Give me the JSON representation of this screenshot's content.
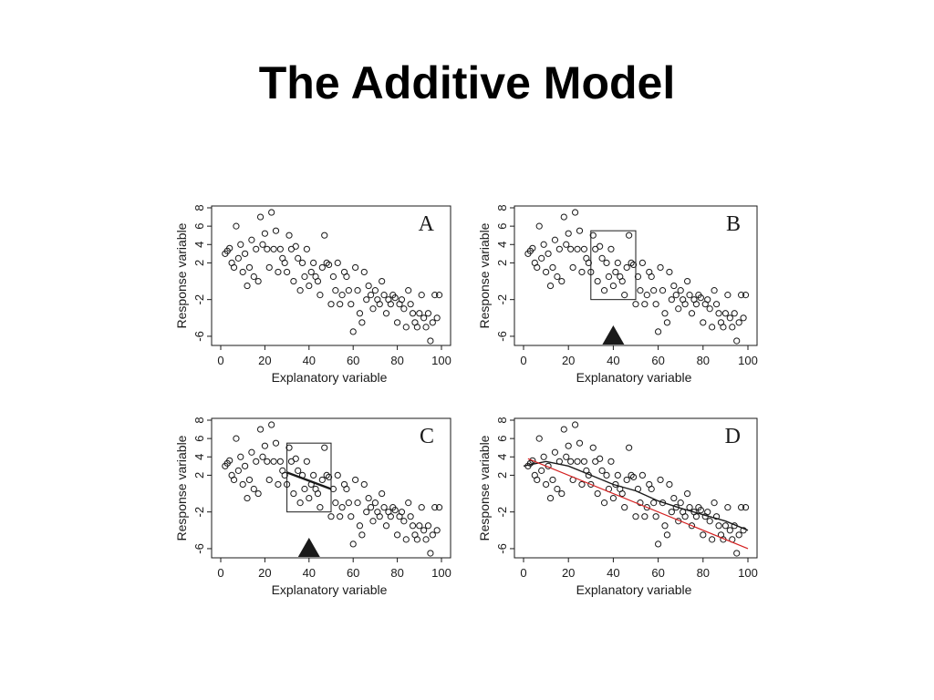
{
  "slide": {
    "title": "The Additive Model"
  },
  "colors": {
    "ink": "#1a1a1a",
    "fit_red": "#d42020"
  },
  "icons": {
    "marker": "triangle-marker-icon"
  },
  "chart_data": {
    "type": "scatter",
    "x": [
      2,
      3,
      4,
      5,
      6,
      7,
      8,
      9,
      10,
      11,
      12,
      13,
      14,
      15,
      16,
      17,
      18,
      19,
      20,
      21,
      22,
      23,
      24,
      25,
      26,
      27,
      28,
      29,
      30,
      31,
      32,
      33,
      34,
      35,
      36,
      37,
      38,
      39,
      40,
      41,
      42,
      43,
      44,
      45,
      46,
      47,
      48,
      49,
      50,
      51,
      52,
      53,
      54,
      55,
      56,
      57,
      58,
      59,
      60,
      61,
      62,
      63,
      64,
      65,
      66,
      67,
      68,
      69,
      70,
      71,
      72,
      73,
      74,
      75,
      76,
      77,
      78,
      79,
      80,
      81,
      82,
      83,
      84,
      85,
      86,
      87,
      88,
      89,
      90,
      91,
      92,
      93,
      94,
      95,
      96,
      97,
      98,
      99
    ],
    "y": [
      3.0,
      3.3,
      3.6,
      2.0,
      1.5,
      6.0,
      2.5,
      4.0,
      1.0,
      3.0,
      -0.5,
      1.5,
      4.5,
      0.5,
      3.5,
      0.0,
      7.0,
      4.0,
      5.2,
      3.5,
      1.5,
      7.5,
      3.5,
      5.5,
      1.0,
      3.5,
      2.5,
      2.0,
      1.0,
      5.0,
      3.5,
      0.0,
      3.8,
      2.5,
      -1.0,
      2.0,
      0.5,
      3.5,
      -0.5,
      1.0,
      2.0,
      0.5,
      0.0,
      -1.5,
      1.5,
      5.0,
      2.0,
      1.8,
      -2.5,
      0.5,
      -1.0,
      2.0,
      -2.5,
      -1.5,
      1.0,
      0.5,
      -1.0,
      -2.5,
      -5.5,
      1.5,
      -1.0,
      -3.5,
      -4.5,
      1.0,
      -2.0,
      -0.5,
      -1.5,
      -3.0,
      -1.0,
      -2.0,
      -2.5,
      0.0,
      -1.5,
      -3.5,
      -2.0,
      -2.5,
      -1.5,
      -1.8,
      -4.5,
      -2.5,
      -2.0,
      -3.0,
      -5.0,
      -1.0,
      -2.5,
      -3.5,
      -4.5,
      -5.0,
      -3.5,
      -1.5,
      -4.0,
      -5.0,
      -3.5,
      -6.5,
      -4.5,
      -1.5,
      -4.0,
      -1.5
    ],
    "xlim": [
      0,
      100
    ],
    "ylim": [
      -7,
      8
    ],
    "xticks": [
      "0",
      "20",
      "40",
      "60",
      "80",
      "100"
    ],
    "yticks": [
      "-6",
      "-2",
      "2",
      "4",
      "6",
      "8"
    ],
    "xlabel": "Explanatory variable",
    "ylabel": "Response variable",
    "grid": false,
    "panels": [
      {
        "label": "A"
      },
      {
        "label": "B",
        "window": [
          30,
          50
        ],
        "window_y": [
          -2,
          5.5
        ],
        "marker_x": 40
      },
      {
        "label": "C",
        "window": [
          30,
          50
        ],
        "window_y": [
          -2,
          5.5
        ],
        "marker_x": 40,
        "local_fit": [
          [
            30,
            2.3
          ],
          [
            50,
            0.5
          ]
        ]
      },
      {
        "label": "D",
        "series": [
          {
            "type": "line",
            "color": "#1a1a1a",
            "points": [
              [
                0,
                3.0
              ],
              [
                10,
                3.5
              ],
              [
                20,
                3.0
              ],
              [
                30,
                2.0
              ],
              [
                40,
                1.0
              ],
              [
                50,
                0.3
              ],
              [
                60,
                -0.8
              ],
              [
                70,
                -1.6
              ],
              [
                80,
                -2.3
              ],
              [
                90,
                -3.0
              ],
              [
                100,
                -4.0
              ]
            ]
          },
          {
            "type": "line",
            "color": "#d42020",
            "points": [
              [
                2,
                3.8
              ],
              [
                100,
                -6.0
              ]
            ]
          }
        ]
      }
    ]
  }
}
